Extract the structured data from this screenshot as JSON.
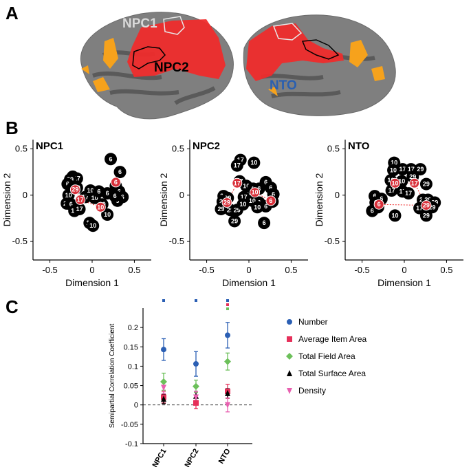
{
  "panels": {
    "a": "A",
    "b": "B",
    "c": "C"
  },
  "brain": {
    "labels": {
      "npc1": "NPC1",
      "npc2": "NPC2",
      "nto": "NTO"
    },
    "colors": {
      "npc1": "#d9d9d9",
      "npc2": "#000000",
      "nto": "#2a5fb0",
      "activation": "#ef2c2c",
      "weak": "#f6a21c",
      "cortex_light": "#8f8f8f",
      "cortex_dark": "#555555"
    }
  },
  "chart_data": [
    {
      "type": "scatter",
      "title": "NPC1",
      "xlabel": "Dimension 1",
      "ylabel": "Dimension 2",
      "xlim": [
        -0.7,
        0.7
      ],
      "ylim": [
        -0.7,
        0.6
      ],
      "xticks": [
        "-0.5",
        "0",
        "0.5"
      ],
      "yticks": [
        "0.5",
        "0",
        "-0.5"
      ],
      "xtick_values": [
        -0.5,
        0,
        0.5
      ],
      "ytick_values": [
        0.5,
        0,
        -0.5
      ],
      "points": [
        {
          "x": -0.23,
          "y": 0.2,
          "label": "29",
          "hl": false
        },
        {
          "x": -0.18,
          "y": 0.18,
          "label": "17",
          "hl": false
        },
        {
          "x": -0.26,
          "y": 0.17,
          "label": "29",
          "hl": false
        },
        {
          "x": -0.29,
          "y": 0.12,
          "label": "6",
          "hl": false
        },
        {
          "x": -0.24,
          "y": 0.07,
          "label": "6",
          "hl": false
        },
        {
          "x": -0.18,
          "y": 0.08,
          "label": "10",
          "hl": false
        },
        {
          "x": -0.28,
          "y": 0.0,
          "label": "10",
          "hl": false
        },
        {
          "x": -0.3,
          "y": -0.09,
          "label": "29",
          "hl": false
        },
        {
          "x": -0.25,
          "y": -0.1,
          "label": "6",
          "hl": false
        },
        {
          "x": -0.21,
          "y": -0.17,
          "label": "17",
          "hl": false
        },
        {
          "x": -0.15,
          "y": -0.15,
          "label": "17",
          "hl": false
        },
        {
          "x": -0.08,
          "y": -0.02,
          "label": "17",
          "hl": false
        },
        {
          "x": -0.02,
          "y": 0.05,
          "label": "10",
          "hl": false
        },
        {
          "x": 0.03,
          "y": -0.03,
          "label": "10",
          "hl": false
        },
        {
          "x": 0.08,
          "y": 0.04,
          "label": "6",
          "hl": false
        },
        {
          "x": 0.18,
          "y": 0.02,
          "label": "6",
          "hl": false
        },
        {
          "x": 0.28,
          "y": 0.1,
          "label": "6",
          "hl": false
        },
        {
          "x": 0.32,
          "y": 0.04,
          "label": "6",
          "hl": false
        },
        {
          "x": 0.36,
          "y": -0.02,
          "label": "6",
          "hl": false
        },
        {
          "x": 0.3,
          "y": -0.06,
          "label": "6",
          "hl": false
        },
        {
          "x": 0.27,
          "y": -0.01,
          "label": "6",
          "hl": false
        },
        {
          "x": 0.33,
          "y": 0.25,
          "label": "6",
          "hl": false
        },
        {
          "x": 0.22,
          "y": 0.39,
          "label": "6",
          "hl": false
        },
        {
          "x": 0.12,
          "y": -0.1,
          "label": "10",
          "hl": false
        },
        {
          "x": 0.18,
          "y": -0.21,
          "label": "10",
          "hl": false
        },
        {
          "x": -0.03,
          "y": -0.3,
          "label": "17",
          "hl": false
        },
        {
          "x": 0.01,
          "y": -0.33,
          "label": "10",
          "hl": false
        },
        {
          "x": -0.2,
          "y": 0.06,
          "label": "29",
          "hl": true
        },
        {
          "x": -0.14,
          "y": -0.05,
          "label": "17",
          "hl": true
        },
        {
          "x": 0.1,
          "y": -0.13,
          "label": "10",
          "hl": true
        },
        {
          "x": 0.28,
          "y": 0.14,
          "label": "6",
          "hl": true
        }
      ]
    },
    {
      "type": "scatter",
      "title": "NPC2",
      "xlabel": "Dimension 1",
      "ylabel": "Dimension 2",
      "xlim": [
        -0.7,
        0.7
      ],
      "ylim": [
        -0.7,
        0.6
      ],
      "xticks": [
        "-0.5",
        "0",
        "0.5"
      ],
      "yticks": [
        "0.5",
        "0",
        "-0.5"
      ],
      "xtick_values": [
        -0.5,
        0,
        0.5
      ],
      "ytick_values": [
        0.5,
        0,
        -0.5
      ],
      "points": [
        {
          "x": -0.1,
          "y": 0.38,
          "label": "17",
          "hl": false
        },
        {
          "x": -0.14,
          "y": 0.32,
          "label": "17",
          "hl": false
        },
        {
          "x": 0.06,
          "y": 0.35,
          "label": "10",
          "hl": false
        },
        {
          "x": -0.11,
          "y": 0.15,
          "label": "17",
          "hl": false
        },
        {
          "x": -0.03,
          "y": 0.1,
          "label": "10",
          "hl": false
        },
        {
          "x": 0.05,
          "y": 0.07,
          "label": "6",
          "hl": false
        },
        {
          "x": 0.12,
          "y": 0.07,
          "label": "6",
          "hl": false
        },
        {
          "x": 0.2,
          "y": 0.14,
          "label": "6",
          "hl": false
        },
        {
          "x": 0.26,
          "y": 0.08,
          "label": "6",
          "hl": false
        },
        {
          "x": 0.29,
          "y": 0.01,
          "label": "6",
          "hl": false
        },
        {
          "x": 0.28,
          "y": -0.07,
          "label": "6",
          "hl": false
        },
        {
          "x": 0.2,
          "y": -0.12,
          "label": "6",
          "hl": false
        },
        {
          "x": 0.12,
          "y": -0.08,
          "label": "6",
          "hl": false
        },
        {
          "x": -0.3,
          "y": -0.01,
          "label": "29",
          "hl": false
        },
        {
          "x": -0.25,
          "y": -0.03,
          "label": "29",
          "hl": false
        },
        {
          "x": -0.31,
          "y": -0.07,
          "label": "29",
          "hl": false
        },
        {
          "x": -0.33,
          "y": -0.15,
          "label": "29",
          "hl": false
        },
        {
          "x": -0.22,
          "y": -0.16,
          "label": "29",
          "hl": false
        },
        {
          "x": -0.14,
          "y": -0.16,
          "label": "29",
          "hl": false
        },
        {
          "x": -0.17,
          "y": -0.28,
          "label": "29",
          "hl": false
        },
        {
          "x": 0.04,
          "y": -0.06,
          "label": "10",
          "hl": false
        },
        {
          "x": 0.1,
          "y": -0.13,
          "label": "10",
          "hl": false
        },
        {
          "x": -0.06,
          "y": -0.02,
          "label": "17",
          "hl": false
        },
        {
          "x": -0.07,
          "y": -0.1,
          "label": "10",
          "hl": false
        },
        {
          "x": 0.18,
          "y": -0.3,
          "label": "6",
          "hl": false
        },
        {
          "x": -0.26,
          "y": -0.08,
          "label": "29",
          "hl": true
        },
        {
          "x": -0.14,
          "y": 0.13,
          "label": "17",
          "hl": true
        },
        {
          "x": 0.07,
          "y": 0.03,
          "label": "10",
          "hl": true
        },
        {
          "x": 0.26,
          "y": -0.06,
          "label": "6",
          "hl": true
        }
      ]
    },
    {
      "type": "scatter",
      "title": "NTO",
      "xlabel": "Dimension 1",
      "ylabel": "Dimension 2",
      "xlim": [
        -0.7,
        0.7
      ],
      "ylim": [
        -0.7,
        0.6
      ],
      "xticks": [
        "-0.5",
        "0",
        "0.5"
      ],
      "yticks": [
        "0.5",
        "0",
        "-0.5"
      ],
      "xtick_values": [
        -0.5,
        0,
        0.5
      ],
      "ytick_values": [
        0.5,
        0,
        -0.5
      ],
      "points": [
        {
          "x": -0.12,
          "y": 0.35,
          "label": "10",
          "hl": false
        },
        {
          "x": -0.13,
          "y": 0.27,
          "label": "10",
          "hl": false
        },
        {
          "x": -0.02,
          "y": 0.28,
          "label": "17",
          "hl": false
        },
        {
          "x": 0.08,
          "y": 0.28,
          "label": "17",
          "hl": false
        },
        {
          "x": 0.19,
          "y": 0.28,
          "label": "29",
          "hl": false
        },
        {
          "x": -0.16,
          "y": 0.16,
          "label": "10",
          "hl": false
        },
        {
          "x": -0.03,
          "y": 0.15,
          "label": "10",
          "hl": false
        },
        {
          "x": 0.1,
          "y": 0.2,
          "label": "29",
          "hl": false
        },
        {
          "x": 0.26,
          "y": 0.12,
          "label": "29",
          "hl": false
        },
        {
          "x": -0.15,
          "y": 0.05,
          "label": "17",
          "hl": false
        },
        {
          "x": -0.02,
          "y": 0.04,
          "label": "17",
          "hl": false
        },
        {
          "x": 0.05,
          "y": 0.02,
          "label": "17",
          "hl": false
        },
        {
          "x": -0.35,
          "y": -0.01,
          "label": "6",
          "hl": false
        },
        {
          "x": -0.27,
          "y": -0.04,
          "label": "6",
          "hl": false
        },
        {
          "x": -0.34,
          "y": -0.08,
          "label": "6",
          "hl": false
        },
        {
          "x": -0.31,
          "y": -0.13,
          "label": "6",
          "hl": false
        },
        {
          "x": -0.38,
          "y": -0.17,
          "label": "6",
          "hl": false
        },
        {
          "x": 0.22,
          "y": -0.05,
          "label": "29",
          "hl": false
        },
        {
          "x": 0.28,
          "y": -0.05,
          "label": "29",
          "hl": false
        },
        {
          "x": 0.36,
          "y": -0.08,
          "label": "29",
          "hl": false
        },
        {
          "x": 0.33,
          "y": -0.13,
          "label": "29",
          "hl": false
        },
        {
          "x": 0.26,
          "y": -0.22,
          "label": "29",
          "hl": false
        },
        {
          "x": 0.18,
          "y": -0.14,
          "label": "17",
          "hl": false
        },
        {
          "x": -0.11,
          "y": -0.22,
          "label": "10",
          "hl": false
        },
        {
          "x": -0.11,
          "y": 0.13,
          "label": "10",
          "hl": true
        },
        {
          "x": 0.12,
          "y": 0.13,
          "label": "17",
          "hl": true
        },
        {
          "x": 0.26,
          "y": -0.11,
          "label": "29",
          "hl": true
        },
        {
          "x": -0.3,
          "y": -0.1,
          "label": "6",
          "hl": true
        }
      ]
    },
    {
      "type": "scatter",
      "title": "",
      "xlabel": "",
      "ylabel": "Semipartial Correlation Coefficient",
      "ylim": [
        -0.1,
        0.25
      ],
      "yticks": [
        "0.2",
        "0.15",
        "0.1",
        "0.05",
        "0",
        "-0.05",
        "-0.1"
      ],
      "ytick_values": [
        0.2,
        0.15,
        0.1,
        0.05,
        0,
        -0.05,
        -0.1
      ],
      "categories": [
        "NPC1",
        "NPC2",
        "NTO"
      ],
      "series": [
        {
          "name": "Number",
          "color": "#2b5fb4",
          "marker": "circle",
          "values": [
            0.143,
            0.106,
            0.18
          ],
          "errors": [
            0.028,
            0.032,
            0.033
          ]
        },
        {
          "name": "Average Item Area",
          "color": "#e6305a",
          "marker": "square",
          "values": [
            0.02,
            0.005,
            0.035
          ],
          "errors": [
            0.015,
            0.015,
            0.018
          ]
        },
        {
          "name": "Total Field Area",
          "color": "#6cc05a",
          "marker": "diamond",
          "values": [
            0.06,
            0.048,
            0.112
          ],
          "errors": [
            0.022,
            0.016,
            0.022
          ]
        },
        {
          "name": "Total Surface Area",
          "color": "#000000",
          "marker": "triangle-up",
          "values": [
            0.015,
            0.023,
            0.03
          ],
          "errors": [
            0.012,
            0.012,
            0.012
          ]
        },
        {
          "name": "Density",
          "color": "#e860b0",
          "marker": "triangle-down",
          "values": [
            0.045,
            0.02,
            0.0
          ],
          "errors": [
            0.015,
            0.015,
            0.018
          ]
        }
      ],
      "significance": [
        {
          "category": "NPC1",
          "colors": [
            "#2b5fb4"
          ]
        },
        {
          "category": "NPC2",
          "colors": [
            "#2b5fb4"
          ]
        },
        {
          "category": "NTO",
          "colors": [
            "#2b5fb4",
            "#e6305a",
            "#6cc05a"
          ]
        }
      ],
      "reference_line": 0
    }
  ]
}
